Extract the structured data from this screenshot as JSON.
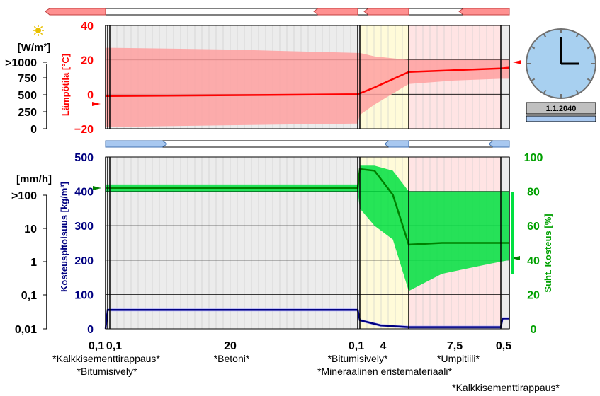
{
  "colors": {
    "temp": "#ff0000",
    "temp_band": "#ffa0a0",
    "moisture": "#000080",
    "moisture_band": "#a0a0ff",
    "rh": "#008000",
    "rh_band": "#00e040",
    "rh_text": "#00a000",
    "concrete_bg": "#ececec",
    "insulation_bg": "#fffbd9",
    "brick_bg": "#ffe4e4",
    "sun": "#e8c000",
    "clock_face": "#a8d0f0"
  },
  "icons": {
    "sun": "sun-icon",
    "clock": "clock-icon"
  },
  "top_panel": {
    "radiation_unit": "[W/m²]",
    "radiation_ticks": [
      ">1000",
      "750",
      "500",
      "250",
      "0"
    ],
    "temp_axis_label": "Lämpötila [°C]",
    "temp_ticks": [
      "40",
      "20",
      "0",
      "−20"
    ]
  },
  "bottom_panel": {
    "rain_unit": "[mm/h]",
    "rain_ticks": [
      ">100",
      "10",
      "1",
      "0,1",
      "0,01"
    ],
    "moisture_axis_label": "Kosteuspitoisuus [kg/m³]",
    "moisture_ticks": [
      "500",
      "400",
      "300",
      "200",
      "100",
      "0"
    ],
    "rh_axis_label": "Suht. Kosteus [%]",
    "rh_ticks": [
      "100",
      "80",
      "60",
      "40",
      "20",
      "0"
    ]
  },
  "clock": {
    "date": "1.1.2040"
  },
  "layers": {
    "thickness_labels": [
      "0,1",
      "0,1",
      "20",
      "0,1",
      "4",
      "7,5",
      "0,5"
    ],
    "materials_row1": [
      "*Kalkkisementtirappaus*",
      "*Betoni*",
      "*Bitumisively*",
      "*Umpitiili*"
    ],
    "materials_row2": [
      "*Bitumisively*",
      "*Mineraalinen eristemateriaali*"
    ],
    "materials_row3": [
      "*Kalkkisementtirappaus*"
    ]
  },
  "chart_data": [
    {
      "type": "line",
      "name": "temperature-profile",
      "ylabel": "Lämpötila [°C]",
      "ylim": [
        -20,
        40
      ],
      "x_units": "cm",
      "layer_thickness_cm": [
        0.1,
        0.1,
        20,
        0.1,
        4,
        7.5,
        0.5
      ],
      "x": [
        0,
        0.2,
        10,
        20.2,
        20.3,
        21.5,
        24.3,
        28,
        31.8,
        32.3
      ],
      "mean": [
        -1,
        -1,
        -0.5,
        0,
        0.5,
        4,
        13,
        14,
        15,
        15.5
      ],
      "band_upper": [
        27,
        27,
        26,
        24,
        24,
        22,
        20,
        20,
        20,
        20
      ],
      "band_lower": [
        -19,
        -19,
        -18,
        -17,
        -12,
        -6,
        6,
        8,
        9,
        9
      ]
    },
    {
      "type": "line",
      "name": "moisture-content",
      "ylabel": "Kosteuspitoisuus [kg/m³]",
      "ylim": [
        0,
        500
      ],
      "x": [
        0,
        0.1,
        0.2,
        20.2,
        20.3,
        22,
        24.3,
        31.8,
        31.9,
        32.3
      ],
      "values": [
        0,
        55,
        55,
        55,
        25,
        10,
        5,
        5,
        30,
        30
      ]
    },
    {
      "type": "line",
      "name": "relative-humidity",
      "ylabel": "Suht. Kosteus [%]",
      "ylim": [
        0,
        100
      ],
      "x": [
        0,
        20.2,
        20.3,
        21.5,
        23,
        24.3,
        27,
        31,
        32.3
      ],
      "mean": [
        82,
        82,
        93,
        92,
        78,
        49,
        50,
        50,
        50
      ],
      "band_upper": [
        84,
        84,
        95,
        95,
        92,
        80,
        80,
        80,
        80
      ],
      "band_lower": [
        80,
        80,
        70,
        60,
        52,
        22,
        32,
        38,
        40
      ]
    }
  ]
}
